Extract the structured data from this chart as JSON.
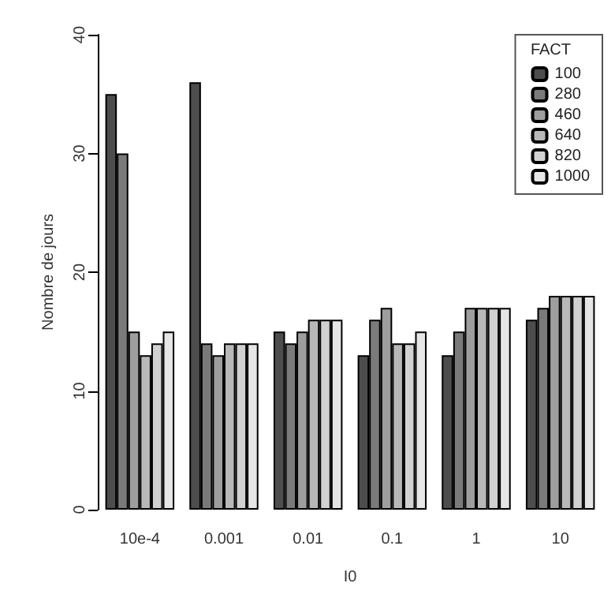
{
  "chart_data": {
    "type": "bar",
    "xlabel": "I0",
    "ylabel": "Nombre de jours",
    "legend_title": "FACT",
    "categories": [
      "10e-4",
      "0.001",
      "0.01",
      "0.1",
      "1",
      "10"
    ],
    "series": [
      {
        "name": "100",
        "color": "#4d4d4d",
        "values": [
          35,
          36,
          15,
          13,
          13,
          16
        ]
      },
      {
        "name": "280",
        "color": "#7a7a7a",
        "values": [
          30,
          14,
          14,
          16,
          15,
          17
        ]
      },
      {
        "name": "460",
        "color": "#9e9e9e",
        "values": [
          15,
          13,
          15,
          17,
          17,
          18
        ]
      },
      {
        "name": "640",
        "color": "#b8b8b8",
        "values": [
          13,
          14,
          16,
          14,
          17,
          18
        ]
      },
      {
        "name": "820",
        "color": "#d1d1d1",
        "values": [
          14,
          14,
          16,
          14,
          17,
          18
        ]
      },
      {
        "name": "1000",
        "color": "#e6e6e6",
        "values": [
          15,
          14,
          16,
          15,
          17,
          18
        ]
      }
    ],
    "ylim": [
      0,
      40
    ],
    "yticks": [
      0,
      10,
      20,
      30,
      40
    ],
    "grid": false,
    "legend": "top right"
  }
}
